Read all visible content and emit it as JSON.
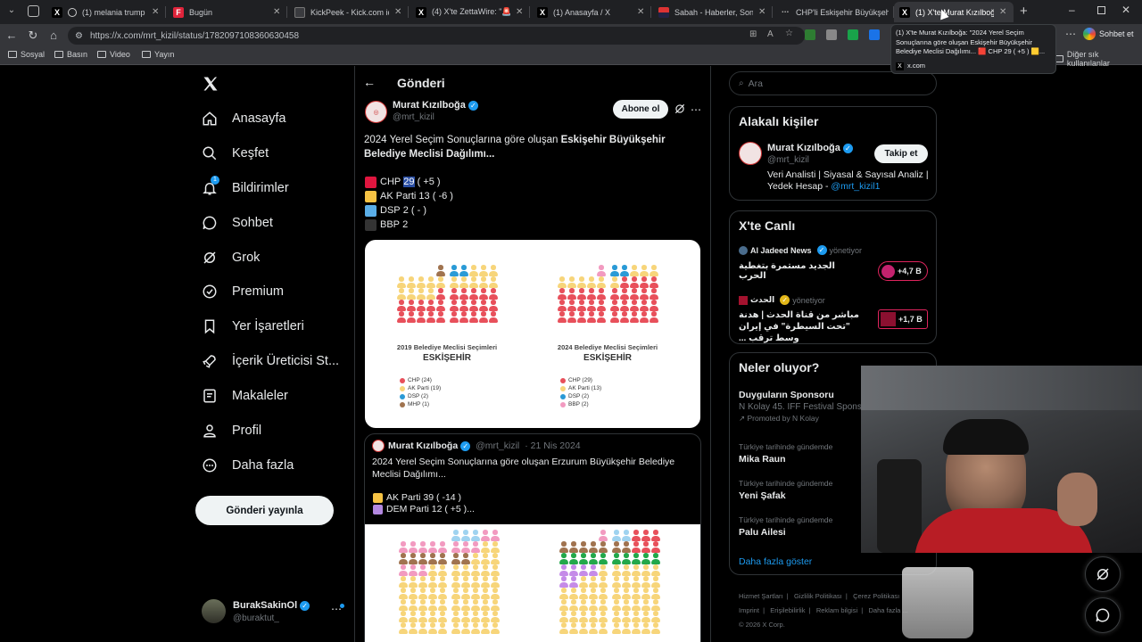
{
  "browser": {
    "tabs": [
      {
        "title": "(1) melania trump - Ara",
        "icon": "x-logo-icon"
      },
      {
        "title": "Bugün",
        "icon": "f-logo-icon"
      },
      {
        "title": "KickPeek - Kick.com için Ge",
        "icon": "kickpeek-icon"
      },
      {
        "title": "(4) X'te ZettaWire: \"🚨 Başk",
        "icon": "x-logo-icon"
      },
      {
        "title": "(1) Anasayfa / X",
        "icon": "x-logo-icon"
      },
      {
        "title": "Sabah - Haberler, Son Dakik",
        "icon": "sabah-icon"
      },
      {
        "title": "CHP'li Eskişehir Büyükşehir",
        "icon": "chp-icon"
      },
      {
        "title": "(1) X'te Murat Kızılboğa: \"20",
        "icon": "x-logo-icon",
        "active": true
      }
    ],
    "url": "https://x.com/mrt_kizil/status/1782097108360630458",
    "profile_label": "Sohbet et",
    "bookmarks": [
      "Sosyal",
      "Basın",
      "Video",
      "Yayın"
    ],
    "other_bookmarks": "Diğer sık kullanılanlar",
    "tooltip": {
      "text": "(1) X'te Murat Kızılboğa: \"2024 Yerel Seçim Sonuçlarına göre oluşan Eskişehir Büyükşehir Belediye Meclisi Dağılımı... 🟥 CHP 29 ( +5 ) 🟨...",
      "domain": "x.com"
    }
  },
  "nav": {
    "items": [
      {
        "label": "Anasayfa",
        "icon": "home-icon"
      },
      {
        "label": "Keşfet",
        "icon": "search-icon"
      },
      {
        "label": "Bildirimler",
        "icon": "bell-icon",
        "badge": "1"
      },
      {
        "label": "Sohbet",
        "icon": "chat-icon"
      },
      {
        "label": "Grok",
        "icon": "grok-icon"
      },
      {
        "label": "Premium",
        "icon": "premium-icon"
      },
      {
        "label": "Yer İşaretleri",
        "icon": "bookmark-icon"
      },
      {
        "label": "İçerik Üreticisi St...",
        "icon": "rocket-icon"
      },
      {
        "label": "Makaleler",
        "icon": "article-icon"
      },
      {
        "label": "Profil",
        "icon": "profile-icon"
      },
      {
        "label": "Daha fazla",
        "icon": "more-circle-icon"
      }
    ],
    "post_button": "Gönderi yayınla",
    "account": {
      "name": "BurakSakinOl",
      "handle": "@buraktut_"
    }
  },
  "post": {
    "header": "Gönderi",
    "author": {
      "name": "Murat Kızılboğa",
      "handle": "@mrt_kizil"
    },
    "subscribe": "Abone ol",
    "text_plain": "2024 Yerel Seçim Sonuçlarına göre oluşan ",
    "text_bold": "Eskişehir Büyükşehir Belediye Meclisi Dağılımı...",
    "parties": [
      {
        "name": "CHP",
        "count": "29",
        "change": "( +5 )",
        "color": "#e0163f"
      },
      {
        "name": "AK Parti",
        "count": "13",
        "change": "( -6 )",
        "color": "#f6c344"
      },
      {
        "name": "DSP",
        "count": "2",
        "change": "( - )",
        "color": "#5aaee8"
      },
      {
        "name": "BBP",
        "count": "2",
        "change": "",
        "color": "#2b2b2b"
      }
    ],
    "chart_left": {
      "title": "2019 Belediye Meclisi Seçimleri",
      "city": "ESKİŞEHİR",
      "legend": [
        {
          "label": "CHP (24)",
          "color": "#e8505b"
        },
        {
          "label": "AK Parti (19)",
          "color": "#f7d57a"
        },
        {
          "label": "DSP (2)",
          "color": "#2a9ad6"
        },
        {
          "label": "MHP (1)",
          "color": "#a0734f"
        }
      ]
    },
    "chart_right": {
      "title": "2024 Belediye Meclisi Seçimleri",
      "city": "ESKİŞEHİR",
      "legend": [
        {
          "label": "CHP (29)",
          "color": "#e8505b"
        },
        {
          "label": "AK Parti (13)",
          "color": "#f7d57a"
        },
        {
          "label": "DSP (2)",
          "color": "#2a9ad6"
        },
        {
          "label": "BBP (2)",
          "color": "#f29ac0"
        }
      ]
    },
    "quoted": {
      "author": "Murat Kızılboğa",
      "handle": "@mrt_kizil",
      "date": "· 21 Nis 2024",
      "text": "2024 Yerel Seçim Sonuçlarına göre oluşan Erzurum Büyükşehir Belediye Meclisi Dağılımı...",
      "parties": [
        {
          "label": "AK Parti 39 ( -14 )",
          "color": "#f6c344"
        },
        {
          "label": "DEM Parti 12 ( +5 )...",
          "color": "#b388e0"
        }
      ]
    }
  },
  "right": {
    "search_placeholder": "Ara",
    "relevant": {
      "title": "Alakalı kişiler",
      "name": "Murat Kızılboğa",
      "handle": "@mrt_kizil",
      "follow": "Takip et",
      "bio": "Veri Analisti | Siyasal & Sayısal Analiz | Yedek Hesap - ",
      "bio_link": "@mrt_kizil1"
    },
    "live": {
      "title": "X'te Canlı",
      "items": [
        {
          "host": "Al Jadeed News",
          "status": "yönetiyor",
          "text": "الجديد مستمرة بتغطية الحرب",
          "count": "+4,7 B"
        },
        {
          "host": "الحدث",
          "status": "yönetiyor",
          "text": "مباشر من قناة الحدث | هدنة \"تحت السيطرة\" في إيران وسط ترقب ...",
          "count": "+1,7 B"
        }
      ]
    },
    "trends": {
      "title": "Neler oluyor?",
      "sponsor": {
        "title": "Duyguların Sponsoru",
        "subtitle": "N Kolay 45. İFF Festival Spons",
        "promoted": "Promoted by N Kolay"
      },
      "items": [
        {
          "context": "Türkiye tarihinde gündemde",
          "name": "Mika Raun"
        },
        {
          "context": "Türkiye tarihinde gündemde",
          "name": "Yeni Şafak"
        },
        {
          "context": "Türkiye tarihinde gündemde",
          "name": "Palu Ailesi"
        }
      ],
      "show_more": "Daha fazla göster"
    },
    "footer": [
      "Hizmet Şartları",
      "Gizlilik Politikası",
      "Çerez Politikası",
      "Imprint",
      "Erişilebilirlik",
      "Reklam bilgisi",
      "Daha fazla ...",
      "© 2026 X Corp."
    ]
  },
  "colors": {
    "accent": "#1d9bf0",
    "bg": "#000000",
    "border": "#2f3336"
  }
}
